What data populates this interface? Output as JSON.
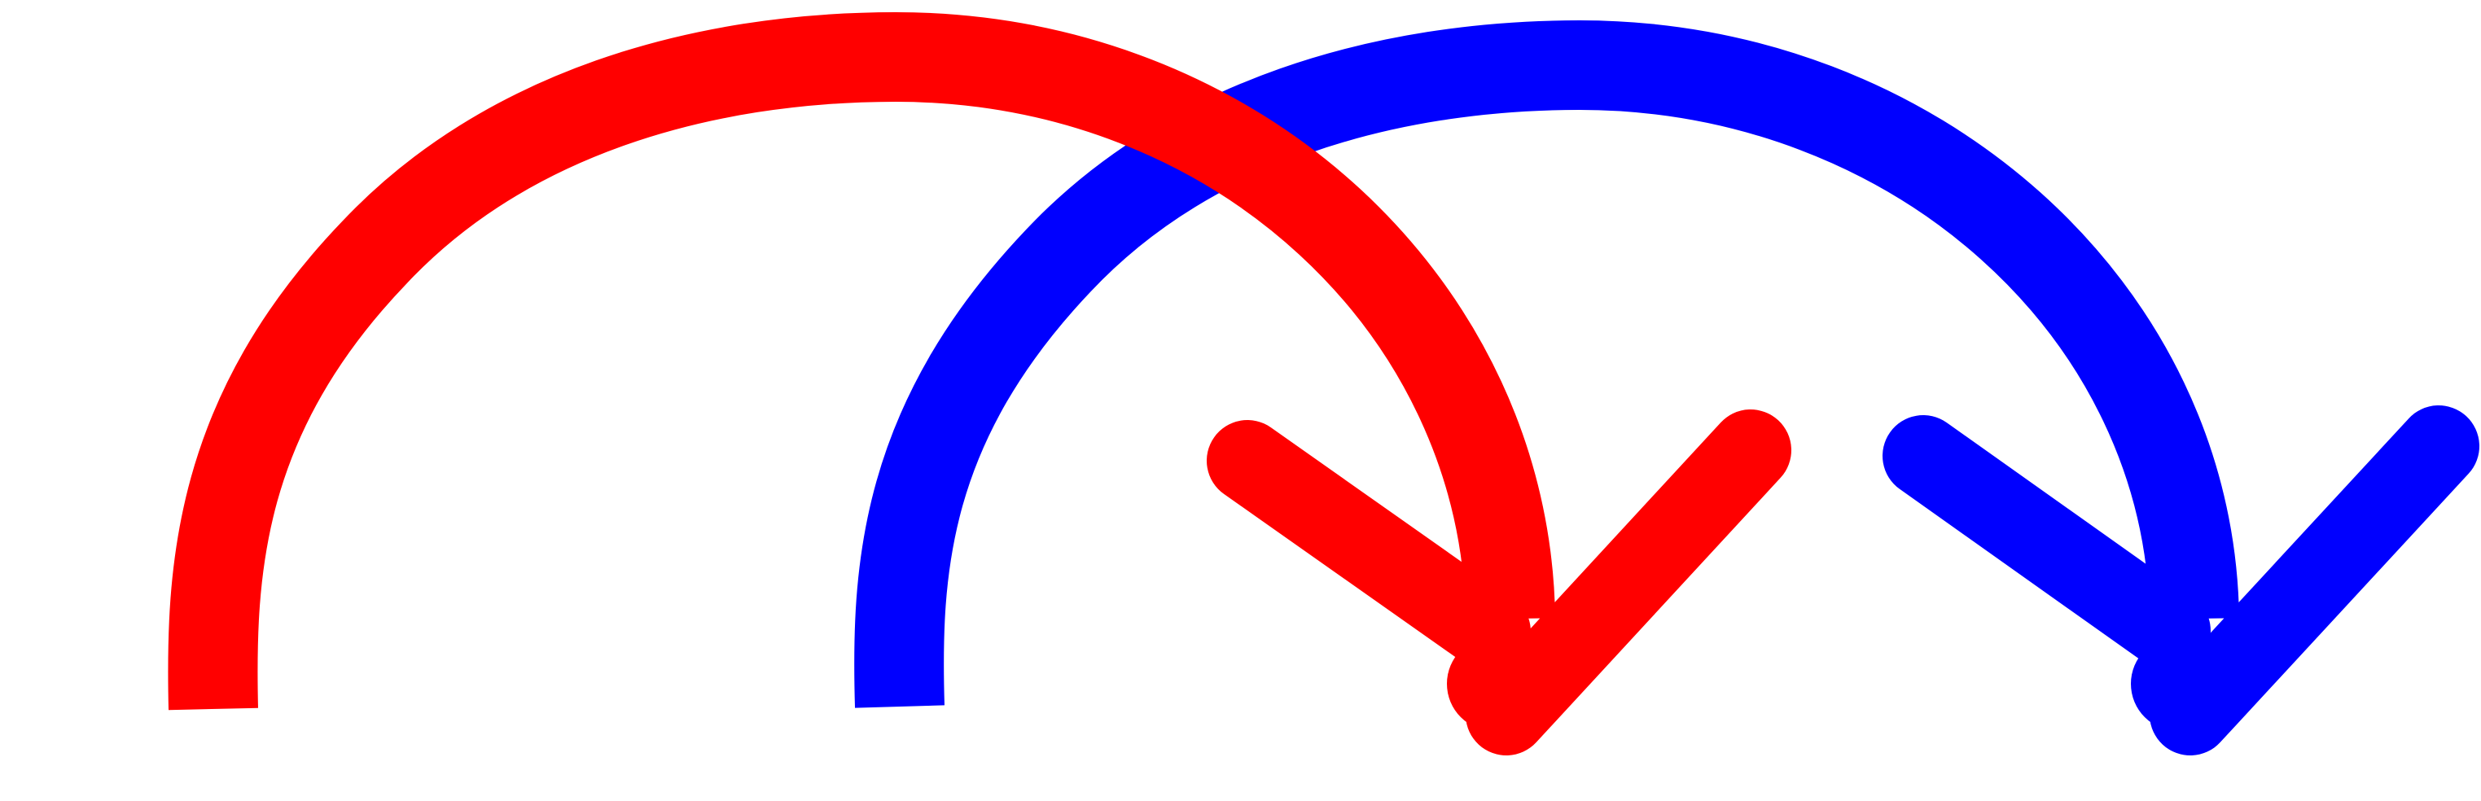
{
  "colors": {
    "background": "#ffffff",
    "arrow_1": "#ff0000",
    "arrow_2": "#0000ff"
  },
  "icons": [
    "curved-arrow-icon-red",
    "curved-arrow-icon-blue"
  ]
}
